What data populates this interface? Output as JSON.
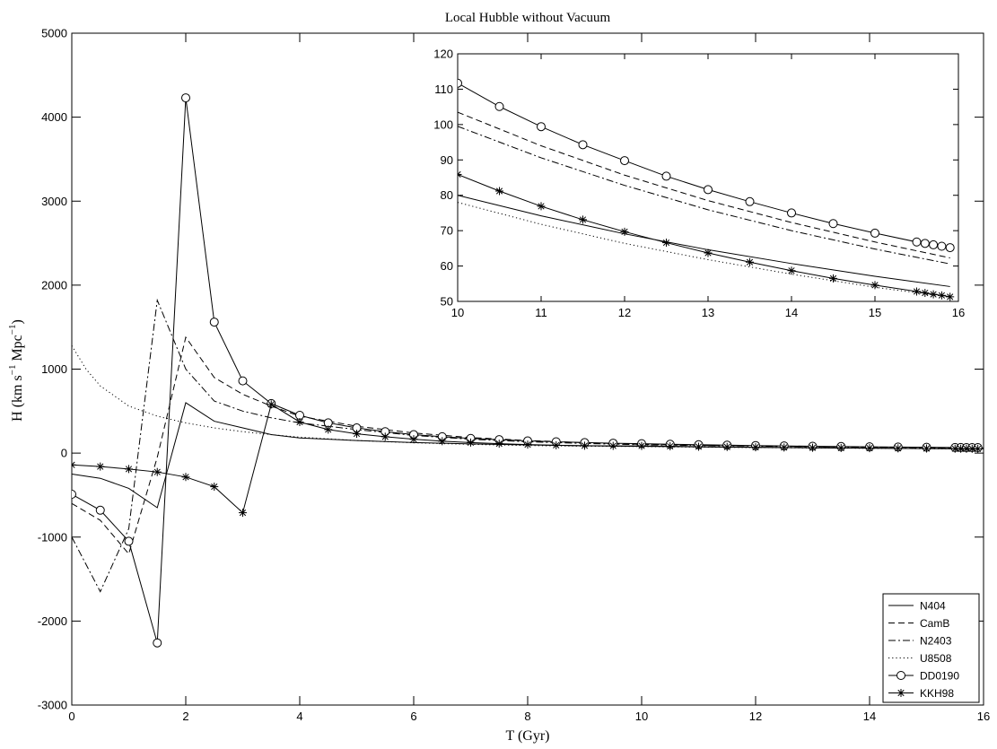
{
  "chart_data": [
    {
      "id": "main",
      "type": "line",
      "title": "Local Hubble without Vacuum",
      "xlabel": "T (Gyr)",
      "ylabel_parts": {
        "pre1": "H (km s",
        "sup1": "−1",
        "mid": " Mpc",
        "sup2": "−1",
        "post": ")"
      },
      "xlim": [
        0,
        16
      ],
      "ylim": [
        -3000,
        5000
      ],
      "xticks": [
        0,
        2,
        4,
        6,
        8,
        10,
        12,
        14,
        16
      ],
      "yticks": [
        -3000,
        -2000,
        -1000,
        0,
        1000,
        2000,
        3000,
        4000,
        5000
      ],
      "legend_position": "bottom-right",
      "series": [
        {
          "name": "N404",
          "dash": "solid",
          "marker": "none",
          "color": "#000000",
          "x": [
            0,
            0.5,
            1,
            1.5,
            2,
            2.5,
            3,
            3.5,
            4,
            5,
            6,
            7,
            8,
            9,
            10,
            11,
            12,
            13,
            14,
            15,
            16
          ],
          "y": [
            -250,
            -300,
            -420,
            -650,
            600,
            380,
            300,
            220,
            180,
            150,
            125,
            110,
            97,
            87,
            80,
            74,
            68,
            63,
            59,
            54,
            51
          ]
        },
        {
          "name": "CamB",
          "dash": "dashed",
          "marker": "none",
          "color": "#000000",
          "x": [
            0,
            0.5,
            1,
            1.5,
            2,
            2.5,
            3,
            3.5,
            4,
            5,
            6,
            7,
            8,
            9,
            10,
            11,
            12,
            13,
            14,
            15,
            16
          ],
          "y": [
            -600,
            -800,
            -1200,
            -50,
            1380,
            900,
            700,
            560,
            440,
            320,
            240,
            185,
            150,
            124,
            104,
            94,
            86,
            78,
            72,
            67,
            62
          ]
        },
        {
          "name": "N2403",
          "dash": "dashdot",
          "marker": "none",
          "color": "#000000",
          "x": [
            0,
            0.5,
            1,
            1.5,
            2,
            2.5,
            3,
            3.5,
            4,
            5,
            6,
            7,
            8,
            9,
            10,
            11,
            12,
            13,
            14,
            15,
            16
          ],
          "y": [
            -1000,
            -1650,
            -900,
            1820,
            1000,
            620,
            500,
            420,
            360,
            280,
            210,
            165,
            135,
            115,
            99,
            90,
            83,
            76,
            70,
            65,
            60
          ]
        },
        {
          "name": "U8508",
          "dash": "dotted",
          "marker": "none",
          "color": "#000000",
          "x": [
            0,
            0.25,
            0.5,
            1,
            1.5,
            2,
            2.5,
            3,
            3.5,
            4,
            5,
            6,
            7,
            8,
            9,
            10,
            11,
            12,
            13,
            14,
            15,
            16
          ],
          "y": [
            1280,
            1000,
            800,
            560,
            440,
            360,
            300,
            255,
            220,
            190,
            150,
            123,
            104,
            90,
            82,
            78,
            71,
            66,
            61,
            57,
            53,
            50
          ]
        },
        {
          "name": "DD0190",
          "dash": "solid",
          "marker": "circle",
          "color": "#000000",
          "x": [
            0,
            0.5,
            1,
            1.5,
            2,
            2.5,
            3,
            3.5,
            4,
            4.5,
            5,
            5.5,
            6,
            6.5,
            7,
            7.5,
            8,
            8.5,
            9,
            9.5,
            10,
            10.5,
            11,
            11.5,
            12,
            12.5,
            13,
            13.5,
            14,
            14.5,
            15,
            15.5,
            15.6,
            15.7,
            15.8,
            15.9
          ],
          "y": [
            -490,
            -680,
            -1050,
            -2260,
            4230,
            1560,
            860,
            590,
            450,
            360,
            300,
            255,
            220,
            195,
            175,
            160,
            145,
            135,
            125,
            118,
            112,
            105,
            99.5,
            94.5,
            89.8,
            85.4,
            81.6,
            78.2,
            75,
            72,
            69.3,
            66.8,
            66.4,
            66,
            65.6,
            65.2
          ]
        },
        {
          "name": "KKH98",
          "dash": "solid",
          "marker": "star",
          "color": "#000000",
          "x": [
            0,
            0.5,
            1,
            1.5,
            2,
            2.5,
            3,
            3.5,
            4,
            4.5,
            5,
            5.5,
            6,
            6.5,
            7,
            7.5,
            8,
            8.5,
            9,
            9.5,
            10,
            10.5,
            11,
            11.5,
            12,
            12.5,
            13,
            13.5,
            14,
            14.5,
            15,
            15.5,
            15.6,
            15.7,
            15.8,
            15.9
          ],
          "y": [
            -140,
            -160,
            -190,
            -225,
            -285,
            -400,
            -710,
            580,
            370,
            280,
            230,
            195,
            165,
            142,
            125,
            112,
            101,
            93,
            88,
            86,
            86,
            81,
            76.5,
            73,
            69.7,
            66.5,
            63.6,
            61.1,
            58.6,
            56.5,
            54.5,
            52.8,
            52.4,
            52,
            51.7,
            51.4
          ]
        }
      ]
    },
    {
      "id": "inset",
      "type": "line",
      "xlim": [
        10,
        16
      ],
      "ylim": [
        50,
        120
      ],
      "xticks": [
        10,
        11,
        12,
        13,
        14,
        15,
        16
      ],
      "yticks": [
        50,
        60,
        70,
        80,
        90,
        100,
        110,
        120
      ],
      "series": [
        {
          "name": "N404",
          "dash": "solid",
          "marker": "none",
          "x": [
            10,
            11,
            12,
            13,
            14,
            15,
            15.9
          ],
          "y": [
            80,
            74.2,
            69.1,
            64.6,
            60.7,
            57.1,
            54.2
          ]
        },
        {
          "name": "CamB",
          "dash": "dashed",
          "marker": "none",
          "x": [
            10,
            11,
            12,
            13,
            14,
            15,
            15.9
          ],
          "y": [
            103.5,
            94,
            85.7,
            78.5,
            72.3,
            66.8,
            62.3
          ]
        },
        {
          "name": "N2403",
          "dash": "dashdot",
          "marker": "none",
          "x": [
            10,
            11,
            12,
            13,
            14,
            15,
            15.9
          ],
          "y": [
            99.5,
            90.6,
            82.8,
            75.9,
            70,
            64.8,
            60.6
          ]
        },
        {
          "name": "U8508",
          "dash": "dotted",
          "marker": "none",
          "x": [
            10,
            11,
            12,
            13,
            14,
            15,
            15.9
          ],
          "y": [
            78,
            71.8,
            66.4,
            61.8,
            57.7,
            54,
            51.2
          ]
        },
        {
          "name": "DD0190",
          "dash": "solid",
          "marker": "circle",
          "x": [
            10,
            10.5,
            11,
            11.5,
            12,
            12.5,
            13,
            13.5,
            14,
            14.5,
            15,
            15.5,
            15.6,
            15.7,
            15.8,
            15.9
          ],
          "y": [
            111.7,
            105.1,
            99.4,
            94.3,
            89.8,
            85.4,
            81.6,
            78.2,
            75,
            72,
            69.3,
            66.8,
            66.4,
            66,
            65.6,
            65.2
          ]
        },
        {
          "name": "KKH98",
          "dash": "solid",
          "marker": "star",
          "x": [
            10,
            10.5,
            11,
            11.5,
            12,
            12.5,
            13,
            13.5,
            14,
            14.5,
            15,
            15.5,
            15.6,
            15.7,
            15.8,
            15.9
          ],
          "y": [
            85.9,
            81.2,
            76.9,
            73.1,
            69.7,
            66.6,
            63.7,
            61.1,
            58.7,
            56.5,
            54.6,
            52.8,
            52.4,
            52,
            51.7,
            51.3
          ]
        }
      ]
    }
  ]
}
